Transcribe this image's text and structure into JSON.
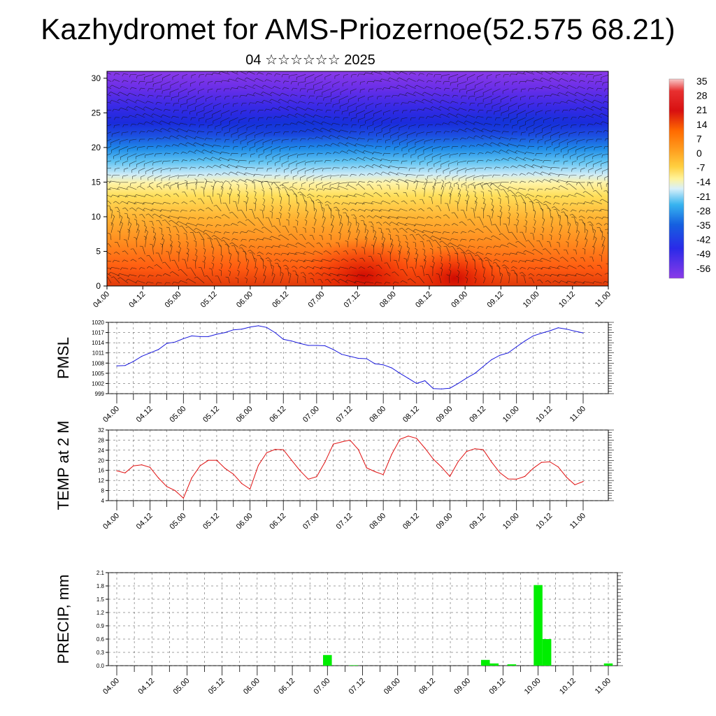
{
  "header": {
    "title": "Kazhydromet for AMS-Priozernoe(52.575 68.21)",
    "subtitle": "04 ☆☆☆☆☆☆ 2025"
  },
  "chart_data": [
    {
      "type": "heatmap",
      "name": "vertical-cross-section",
      "ylim": [
        0,
        31
      ],
      "yticks": [
        0,
        5,
        10,
        15,
        20,
        25,
        30
      ],
      "xticks": [
        "04.00",
        "04.12",
        "05.00",
        "05.12",
        "06.00",
        "06.12",
        "07.00",
        "07.12",
        "08.00",
        "08.12",
        "09.00",
        "09.12",
        "10.00",
        "10.12",
        "11.00"
      ],
      "colorbar": {
        "labels": [
          "35",
          "28",
          "21",
          "14",
          "7",
          "0",
          "-7",
          "-14",
          "-21",
          "-28",
          "-35",
          "-42",
          "-49",
          "-56"
        ],
        "colors": [
          "#f5b0b0",
          "#d81818",
          "#ff6a00",
          "#ffa020",
          "#ffd040",
          "#fff39a",
          "#c8eaf8",
          "#37b4f0",
          "#1560e0",
          "#2a2ae8",
          "#7a2ee8"
        ]
      },
      "colors": {
        "grid": "#bfbfbf",
        "wind": "#111111"
      }
    },
    {
      "type": "line",
      "ylabel": "PMSL",
      "ylim": [
        999,
        1020
      ],
      "yticks": [
        "999",
        "1002",
        "1005",
        "1008",
        "1011",
        "1014",
        "1017",
        "1020"
      ],
      "xticks": [
        "04.00",
        "04.12",
        "05.00",
        "05.12",
        "06.00",
        "06.12",
        "07.00",
        "07.12",
        "08.00",
        "08.12",
        "09.00",
        "09.12",
        "10.00",
        "10.12",
        "11.00"
      ],
      "x": [
        0,
        3,
        6,
        9,
        12,
        15,
        18,
        21,
        24,
        27,
        30,
        33,
        36,
        39,
        42,
        45,
        48,
        51,
        54,
        57,
        60,
        63,
        66,
        69,
        72,
        75,
        78,
        81,
        84,
        87,
        90,
        93,
        96,
        99,
        102,
        105,
        108,
        111,
        114,
        117,
        120,
        123,
        126,
        129,
        132,
        135,
        138,
        141,
        144,
        147,
        150,
        153,
        156,
        159,
        162,
        165,
        168
      ],
      "values": [
        1007.2,
        1007.3,
        1008.5,
        1010,
        1011,
        1012,
        1013.8,
        1014.2,
        1015.2,
        1016,
        1015.8,
        1015.8,
        1016.5,
        1017,
        1017.8,
        1018,
        1018.6,
        1019,
        1018.5,
        1017,
        1015,
        1014.5,
        1013.8,
        1013.2,
        1013.2,
        1013.1,
        1012,
        1010.6,
        1010,
        1009.4,
        1009.3,
        1007.8,
        1007.5,
        1006.6,
        1005,
        1003.5,
        1002,
        1002.8,
        1000.5,
        1000.4,
        1000.6,
        1002,
        1003.6,
        1005,
        1007,
        1009,
        1010.3,
        1011,
        1012.8,
        1014.5,
        1016,
        1016.8,
        1017.5,
        1018.4,
        1018,
        1017.4,
        1016.9
      ],
      "color": "#1a1adc"
    },
    {
      "type": "line",
      "ylabel": "TEMP at 2 M",
      "ylim": [
        4,
        32
      ],
      "yticks": [
        "4",
        "8",
        "12",
        "16",
        "20",
        "24",
        "28",
        "32"
      ],
      "xticks": [
        "04.00",
        "04.12",
        "05.00",
        "05.12",
        "06.00",
        "06.12",
        "07.00",
        "07.12",
        "08.00",
        "08.12",
        "09.00",
        "09.12",
        "10.00",
        "10.12",
        "11.00"
      ],
      "x": [
        0,
        3,
        6,
        9,
        12,
        15,
        18,
        21,
        24,
        27,
        30,
        33,
        36,
        39,
        42,
        45,
        48,
        51,
        54,
        57,
        60,
        63,
        66,
        69,
        72,
        75,
        78,
        81,
        84,
        87,
        90,
        93,
        96,
        99,
        102,
        105,
        108,
        111,
        114,
        117,
        120,
        123,
        126,
        129,
        132,
        135,
        138,
        141,
        144,
        147,
        150,
        153,
        156,
        159,
        162,
        165,
        168
      ],
      "values": [
        15.8,
        15,
        17.8,
        18.2,
        17.2,
        13,
        9.6,
        8,
        5,
        13,
        17.8,
        20,
        20,
        16.8,
        14.5,
        10.8,
        8.6,
        18,
        23,
        24.3,
        24.2,
        20,
        15.9,
        12.5,
        13.5,
        19.3,
        26.4,
        27.3,
        28,
        24.3,
        17,
        15.5,
        14.3,
        22.3,
        28.3,
        29.6,
        28.7,
        24.8,
        20.5,
        17.3,
        13.6,
        19.5,
        23.5,
        24.6,
        24.2,
        19.3,
        15.1,
        12.6,
        12.5,
        13.6,
        16.8,
        19.2,
        19.4,
        17.4,
        13.3,
        10.3,
        11.6
      ],
      "color": "#e01010"
    },
    {
      "type": "bar",
      "ylabel": "PRECIP, mm",
      "ylim": [
        0,
        2.1
      ],
      "yticks": [
        "0.0",
        "0.3",
        "0.6",
        "0.9",
        "1.2",
        "1.5",
        "1.8",
        "2.1"
      ],
      "xticks": [
        "04.00",
        "04.12",
        "05.00",
        "05.12",
        "06.00",
        "06.12",
        "07.00",
        "07.12",
        "08.00",
        "08.12",
        "09.00",
        "09.12",
        "10.00",
        "10.12",
        "11.00"
      ],
      "bars": [
        {
          "x": 72,
          "value": 0.24
        },
        {
          "x": 81,
          "value": 0.01
        },
        {
          "x": 126,
          "value": 0.13
        },
        {
          "x": 129,
          "value": 0.05
        },
        {
          "x": 135,
          "value": 0.03
        },
        {
          "x": 144,
          "value": 1.82
        },
        {
          "x": 147,
          "value": 0.6
        },
        {
          "x": 168,
          "value": 0.05
        }
      ],
      "color": "#00ee00"
    }
  ]
}
